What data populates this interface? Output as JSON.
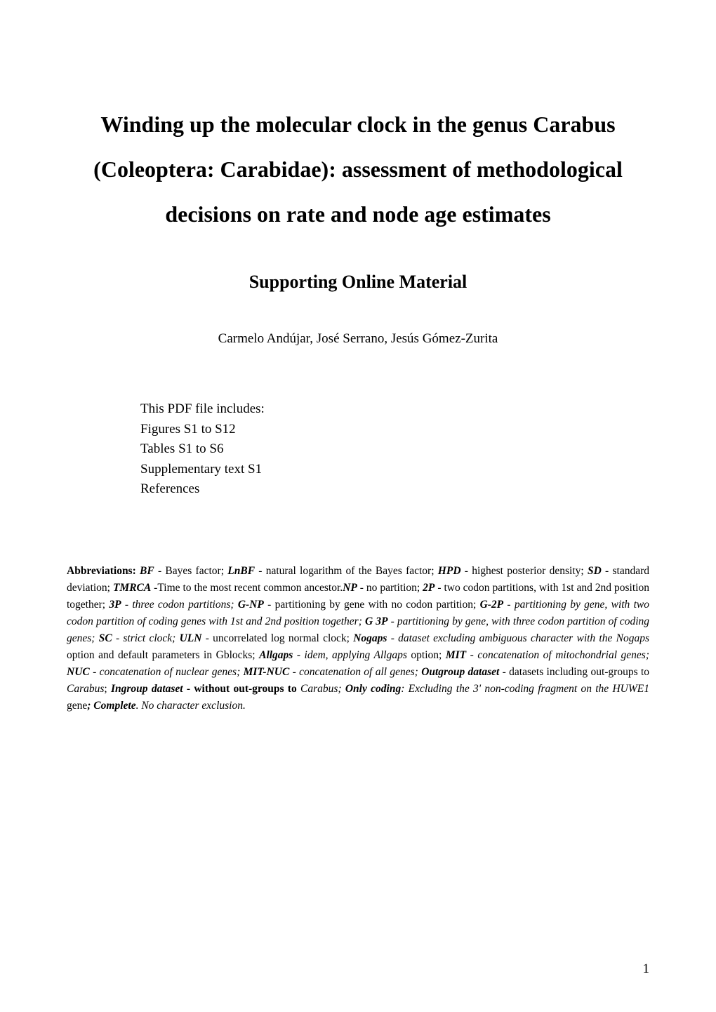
{
  "title_line1": "Winding up the molecular clock in the genus Carabus",
  "title_line2": "(Coleoptera: Carabidae): assessment of methodological",
  "title_line3": "decisions on rate and node age estimates",
  "subtitle": "Supporting Online Material",
  "authors": "Carmelo Andújar, José Serrano, Jesús Gómez-Zurita",
  "includes_heading": "This PDF file includes:",
  "includes_items": [
    "Figures S1 to S12",
    "Tables S1 to S6",
    "Supplementary text S1",
    "References"
  ],
  "abbr_label": "Abbreviations: ",
  "abbr": {
    "bf_k": "BF",
    "bf_v": " - Bayes factor; ",
    "lnbf_k": "LnBF",
    "lnbf_v": " - natural logarithm of the Bayes factor; ",
    "hpd_k": "HPD",
    "hpd_v": " - highest posterior density; ",
    "sd_k": "SD",
    "sd_v": " - standard deviation; ",
    "tmrca_k": "TMRCA",
    "tmrca_v": " -Time to the most recent common ancestor.",
    "np_k": "NP",
    "np_v": " - no partition; ",
    "p2_k": "2P",
    "p2_v": " - two codon partitions, with 1st and 2nd position together; ",
    "p3_k": "3P",
    "p3_v": " - three codon partitions; ",
    "gnp_k": "G-NP",
    "gnp_v": " - partitioning by gene with no codon partition; ",
    "g2p_k": "G-2P",
    "g2p_v": " - partitioning by gene, with two codon partition of coding genes with 1st and 2nd position together; ",
    "g3p_k": "G 3P",
    "g3p_v": " - partitioning by gene, with three codon partition of coding genes; ",
    "sc_k": "SC",
    "sc_v": " - strict clock; ",
    "uln_k": "ULN",
    "uln_v": " - uncorrelated log normal clock; ",
    "nogaps_k": "Nogaps",
    "nogaps_v1": " - dataset excluding ambiguous character with the ",
    "nogaps_v2": "Nogaps",
    "nogaps_v3": " option and default parameters in Gblocks; ",
    "allgaps_k": "Allgaps",
    "allgaps_v1": " - idem, applying ",
    "allgaps_v2": "Allgaps",
    "allgaps_v3": " option; ",
    "mit_k": "MIT",
    "mit_v": " - concatenation of mitochondrial genes; ",
    "nuc_k": "NUC",
    "nuc_v": " - concatenation of nuclear genes; ",
    "mitnuc_k": "MIT-NUC",
    "mitnuc_v": " - concatenation of all genes; ",
    "outgroup_k": "Outgroup dataset",
    "outgroup_v1": " - datasets including out-groups to ",
    "outgroup_v2": "Carabus",
    "outgroup_v3": "; ",
    "ingroup_k": "Ingroup dataset",
    "ingroup_v1": " - without out-groups to ",
    "ingroup_v2": "Carabus; ",
    "onlycoding_k": "Only coding",
    "onlycoding_v1": ": Excluding the 3' non-coding fragment on the ",
    "onlycoding_v2": "HUWE1",
    "onlycoding_v3": " gene",
    "complete_k": "; Complete",
    "complete_v": ". No character exclusion."
  },
  "page_number": "1"
}
